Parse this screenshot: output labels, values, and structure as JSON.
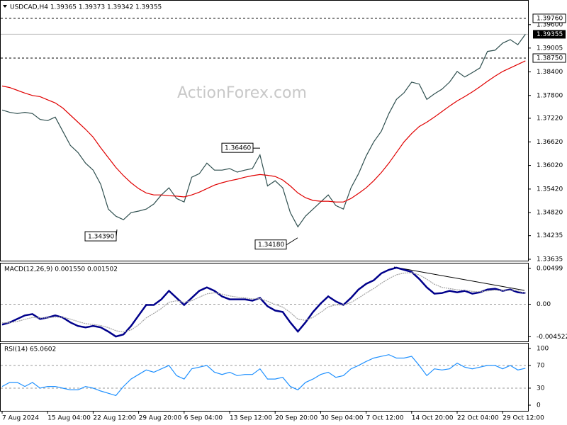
{
  "watermark": "ActionForex.com",
  "chart_data": [
    {
      "type": "line",
      "title": "USDCAD,H4 1.39365 1.39373 1.39342 1.39355",
      "categories": [
        "7 Aug 2024",
        null,
        null,
        null,
        null,
        null,
        "15 Aug 04:00",
        null,
        null,
        null,
        null,
        null,
        "22 Aug 12:00",
        null,
        null,
        null,
        null,
        null,
        "29 Aug 20:00",
        null,
        null,
        null,
        null,
        null,
        "6 Sep 04:00",
        null,
        null,
        null,
        null,
        null,
        "13 Sep 12:00",
        null,
        null,
        null,
        null,
        null,
        "20 Sep 20:00",
        null,
        null,
        null,
        null,
        null,
        "30 Sep 04:00",
        null,
        null,
        null,
        null,
        null,
        "7 Oct 12:00",
        null,
        null,
        null,
        null,
        null,
        "14 Oct 20:00",
        null,
        null,
        null,
        null,
        null,
        "22 Oct 04:00",
        null,
        null,
        null,
        null,
        null,
        "29 Oct 12:00",
        null,
        null,
        null
      ],
      "series": [
        {
          "color": "#2f4f4f",
          "values": [
            1.3743,
            1.3737,
            1.3734,
            1.3737,
            1.3734,
            1.3719,
            1.3716,
            1.3725,
            1.3689,
            1.3653,
            1.3635,
            1.3608,
            1.359,
            1.3554,
            1.3491,
            1.3473,
            1.3464,
            1.3482,
            1.3486,
            1.3491,
            1.3504,
            1.3527,
            1.3545,
            1.3518,
            1.3509,
            1.3572,
            1.3581,
            1.3608,
            1.359,
            1.359,
            1.3594,
            1.3585,
            1.359,
            1.3594,
            1.3629,
            1.355,
            1.3563,
            1.3545,
            1.3482,
            1.3446,
            1.3473,
            1.3491,
            1.3509,
            1.3527,
            1.35,
            1.3491,
            1.3545,
            1.3581,
            1.3626,
            1.3662,
            1.3689,
            1.3734,
            1.377,
            1.3787,
            1.3814,
            1.3809,
            1.377,
            1.3784,
            1.3796,
            1.3814,
            1.3841,
            1.3827,
            1.3838,
            1.385,
            1.3892,
            1.3895,
            1.3913,
            1.3922,
            1.3909,
            1.39355
          ]
        },
        {
          "color": "#e00000",
          "values": [
            1.3804,
            1.38,
            1.3793,
            1.3786,
            1.378,
            1.3777,
            1.3769,
            1.3761,
            1.3748,
            1.373,
            1.3712,
            1.3694,
            1.3674,
            1.3647,
            1.3622,
            1.3597,
            1.3576,
            1.3558,
            1.3543,
            1.3532,
            1.3527,
            1.3527,
            1.3525,
            1.3524,
            1.3522,
            1.3527,
            1.3534,
            1.3543,
            1.3552,
            1.3558,
            1.3563,
            1.3567,
            1.3572,
            1.3576,
            1.3579,
            1.3577,
            1.3574,
            1.3565,
            1.355,
            1.3532,
            1.352,
            1.3513,
            1.3511,
            1.3511,
            1.3509,
            1.3509,
            1.3518,
            1.3531,
            1.3545,
            1.3563,
            1.3584,
            1.3608,
            1.3635,
            1.3662,
            1.3683,
            1.3701,
            1.3712,
            1.3725,
            1.3739,
            1.3753,
            1.3766,
            1.3777,
            1.3789,
            1.3802,
            1.3816,
            1.3829,
            1.3841,
            1.385,
            1.3859,
            1.3868
          ]
        }
      ],
      "ylim": [
        1.33599,
        1.40209
      ],
      "yticks": [
        {
          "value": 1.396,
          "label": "1.39600"
        },
        1.39005,
        {
          "value": 1.384,
          "label": "1.38400"
        },
        {
          "value": 1.378,
          "label": "1.37800"
        },
        {
          "value": 1.3722,
          "label": "1.37220"
        },
        {
          "value": 1.3662,
          "label": "1.36620"
        },
        {
          "value": 1.3602,
          "label": "1.36020"
        },
        {
          "value": 1.3542,
          "label": "1.35420"
        },
        {
          "value": 1.3482,
          "label": "1.34820"
        },
        1.34235,
        1.33635
      ],
      "levels": [
        {
          "value": 1.3976,
          "label": "1.39760"
        },
        {
          "value": 1.3875,
          "label": "1.38750"
        }
      ],
      "last_price": {
        "value": 1.39355,
        "label": "1.39355"
      },
      "annotations": [
        {
          "value": 1.3439,
          "label": "1.34390"
        },
        {
          "value": 1.3646,
          "label": "1.36460"
        },
        {
          "value": 1.3418,
          "label": "1.34180"
        }
      ]
    },
    {
      "type": "line",
      "title": "MACD(12,26,9) 0.001550 0.001502",
      "series": [
        {
          "color": "#00008b",
          "values": [
            -0.00284,
            -0.00254,
            -0.00205,
            -0.00156,
            -0.00137,
            -0.00205,
            -0.00186,
            -0.00156,
            -0.00186,
            -0.00254,
            -0.00303,
            -0.00323,
            -0.00303,
            -0.00323,
            -0.00381,
            -0.0045,
            -0.00421,
            -0.00303,
            -0.00156,
            -0.0001,
            -0.0001,
            0.00068,
            0.00186,
            0.00088,
            -0.0001,
            0.00088,
            0.00186,
            0.00235,
            0.00186,
            0.00108,
            0.00068,
            0.00068,
            0.00068,
            0.00049,
            0.00088,
            -0.00029,
            -0.00088,
            -0.00108,
            -0.00254,
            -0.00381,
            -0.00254,
            -0.00108,
            0.0001,
            0.00108,
            0.00039,
            -0.0001,
            0.00088,
            0.00205,
            0.00284,
            0.00333,
            0.0043,
            0.00479,
            0.00509,
            0.00479,
            0.0045,
            0.00352,
            0.00235,
            0.00147,
            0.00156,
            0.00186,
            0.00166,
            0.00186,
            0.00147,
            0.00166,
            0.00205,
            0.00215,
            0.00186,
            0.00205,
            0.00166,
            0.00155
          ]
        },
        {
          "color": "#a0a0a0",
          "values": [
            -0.0026,
            -0.00258,
            -0.0024,
            -0.00211,
            -0.00185,
            -0.00192,
            -0.0019,
            -0.00178,
            -0.00181,
            -0.00207,
            -0.00241,
            -0.0027,
            -0.00282,
            -0.00296,
            -0.00326,
            -0.00369,
            -0.00387,
            -0.00358,
            -0.00287,
            -0.0019,
            -0.00127,
            -0.00059,
            0.00027,
            0.00048,
            0.00028,
            0.00049,
            0.00097,
            0.00145,
            0.00159,
            0.00141,
            0.00115,
            0.00099,
            0.00088,
            0.00074,
            0.00079,
            0.00041,
            -4e-05,
            -0.0004,
            -0.00115,
            -0.00208,
            -0.00224,
            -0.00183,
            -0.00115,
            -0.00037,
            -0.0001,
            -0.0001,
            0.00024,
            0.00087,
            0.00156,
            0.00218,
            0.00292,
            0.00357,
            0.0041,
            0.00434,
            0.0044,
            0.00409,
            0.00348,
            0.00278,
            0.00235,
            0.00218,
            0.002,
            0.00195,
            0.00178,
            0.00174,
            0.00185,
            0.00196,
            0.00192,
            0.00197,
            0.00186,
            0.0015
          ]
        }
      ],
      "ylim": [
        -0.00518,
        0.00567
      ],
      "yticks": [
        0.00499,
        {
          "value": 0,
          "label": "0.00"
        },
        -0.004522
      ],
      "levels": [
        0
      ]
    },
    {
      "type": "line",
      "title": "RSI(14) 65.0602",
      "series": [
        {
          "color": "#1e90ff",
          "values": [
            33,
            40,
            40,
            33,
            40,
            30,
            33,
            33,
            30,
            27,
            27,
            33,
            30,
            25,
            21,
            17,
            33,
            46,
            54,
            62,
            58,
            64,
            70,
            52,
            46,
            64,
            67,
            70,
            58,
            54,
            58,
            52,
            54,
            54,
            64,
            46,
            46,
            49,
            33,
            27,
            40,
            46,
            54,
            58,
            49,
            52,
            64,
            70,
            77,
            83,
            86,
            89,
            83,
            83,
            86,
            70,
            52,
            64,
            62,
            64,
            74,
            67,
            64,
            67,
            70,
            70,
            64,
            70,
            62,
            65.06
          ]
        }
      ],
      "ylim": [
        -10,
        108.6
      ],
      "yticks": [
        100,
        70,
        30,
        0
      ],
      "levels": [
        70,
        30
      ]
    }
  ]
}
